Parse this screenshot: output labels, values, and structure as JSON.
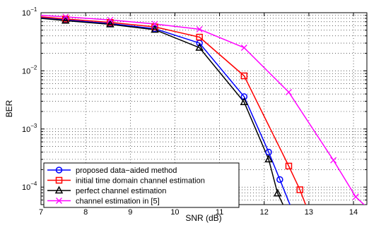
{
  "chart_data": {
    "type": "line",
    "xlabel": "SNR (dB)",
    "ylabel": "BER",
    "xlim": [
      7,
      14.3
    ],
    "ylim": [
      5e-05,
      0.1
    ],
    "yscale": "log",
    "grid": true,
    "legend_position": "bottom-left",
    "x_ticks": [
      {
        "value": 7,
        "label": "7"
      },
      {
        "value": 8,
        "label": "8"
      },
      {
        "value": 9,
        "label": "9"
      },
      {
        "value": 10,
        "label": "10"
      },
      {
        "value": 11,
        "label": "11"
      },
      {
        "value": 12,
        "label": "12"
      },
      {
        "value": 13,
        "label": "13"
      },
      {
        "value": 14,
        "label": "14"
      }
    ],
    "y_ticks": [
      {
        "value": 0.1,
        "base": "10",
        "exp": "−1"
      },
      {
        "value": 0.01,
        "base": "10",
        "exp": "−2"
      },
      {
        "value": 0.001,
        "base": "10",
        "exp": "−3"
      },
      {
        "value": 0.0001,
        "base": "10",
        "exp": "−4"
      }
    ],
    "series": [
      {
        "name": "proposed data−aided method",
        "color": "#0000ff",
        "marker": "circle",
        "x": [
          7,
          7.55,
          8.55,
          9.55,
          10.55,
          11.55,
          12.1,
          12.35,
          12.6
        ],
        "y": [
          0.083,
          0.075,
          0.065,
          0.053,
          0.03,
          0.0036,
          0.0004,
          0.000135,
          4.5e-05
        ],
        "marker_indices": [
          1,
          2,
          3,
          4,
          5,
          6,
          7
        ]
      },
      {
        "name": "initial time domain channel estimation",
        "color": "#ff0000",
        "marker": "square",
        "x": [
          7,
          7.55,
          8.55,
          9.55,
          10.55,
          11.55,
          12.55,
          12.8,
          12.95
        ],
        "y": [
          0.085,
          0.078,
          0.068,
          0.057,
          0.038,
          0.0082,
          0.00023,
          9e-05,
          4.5e-05
        ],
        "marker_indices": [
          1,
          2,
          3,
          4,
          5,
          6,
          7
        ]
      },
      {
        "name": "perfect channel estimation",
        "color": "#000000",
        "marker": "triangle",
        "x": [
          7,
          7.55,
          8.55,
          9.55,
          10.55,
          11.55,
          12.1,
          12.3,
          12.45
        ],
        "y": [
          0.08,
          0.073,
          0.063,
          0.051,
          0.025,
          0.0029,
          0.0003,
          7.8e-05,
          4.5e-05
        ],
        "marker_indices": [
          1,
          2,
          3,
          4,
          5,
          6,
          7
        ]
      },
      {
        "name": "channel estimation in [5]",
        "color": "#ff00ff",
        "marker": "x",
        "x": [
          7,
          7.55,
          8.55,
          9.55,
          10.55,
          11.55,
          12.55,
          13.55,
          14.05,
          14.3
        ],
        "y": [
          0.09,
          0.085,
          0.075,
          0.064,
          0.052,
          0.025,
          0.0043,
          0.00029,
          6.8e-05,
          4.5e-05
        ],
        "marker_indices": [
          1,
          2,
          3,
          4,
          5,
          6,
          7,
          8
        ]
      }
    ]
  }
}
